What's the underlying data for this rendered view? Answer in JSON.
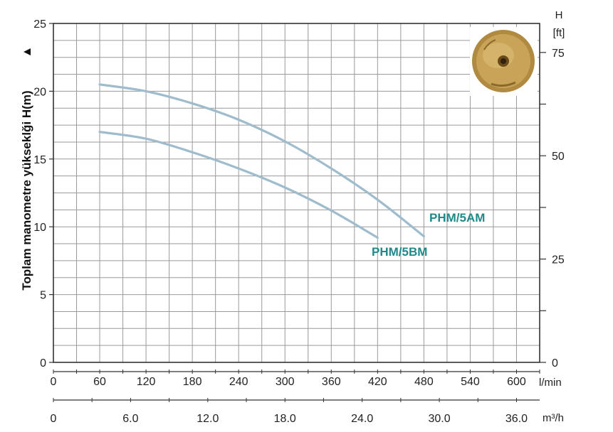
{
  "chart_data": {
    "type": "line",
    "ylabel": "Toplam manometre yükseklği  H(m)",
    "ylabel_arrow": "▲",
    "ylim": [
      0,
      25
    ],
    "yticks": [
      "0",
      "5",
      "10",
      "15",
      "20",
      "25"
    ],
    "xlim_lmin": [
      0,
      630
    ],
    "xticks_lmin": [
      "0",
      "60",
      "120",
      "180",
      "240",
      "300",
      "360",
      "420",
      "480",
      "540",
      "600"
    ],
    "xunit_lmin": "l/min",
    "xticks_m3h": [
      "0",
      "6.0",
      "12.0",
      "18.0",
      "24.0",
      "30.0",
      "36.0"
    ],
    "xunit_m3h": "m³/h",
    "right_axis_title": "H",
    "right_axis_unit": "[ft]",
    "right_ticks": [
      "0",
      "25",
      "50",
      "75"
    ],
    "series": [
      {
        "name": "PHM/5AM",
        "color": "#9fbccd",
        "label_color": "#1e8a8a",
        "x": [
          60,
          120,
          180,
          240,
          300,
          360,
          420,
          480
        ],
        "y": [
          20.5,
          20.0,
          19.1,
          17.9,
          16.3,
          14.3,
          12.0,
          9.3
        ]
      },
      {
        "name": "PHM/5BM",
        "color": "#9fbccd",
        "label_color": "#1e8a8a",
        "x": [
          60,
          120,
          180,
          240,
          300,
          360,
          420
        ],
        "y": [
          17.0,
          16.5,
          15.5,
          14.3,
          12.9,
          11.2,
          9.2
        ]
      }
    ]
  },
  "product_image": {
    "name": "brass impeller photo"
  }
}
